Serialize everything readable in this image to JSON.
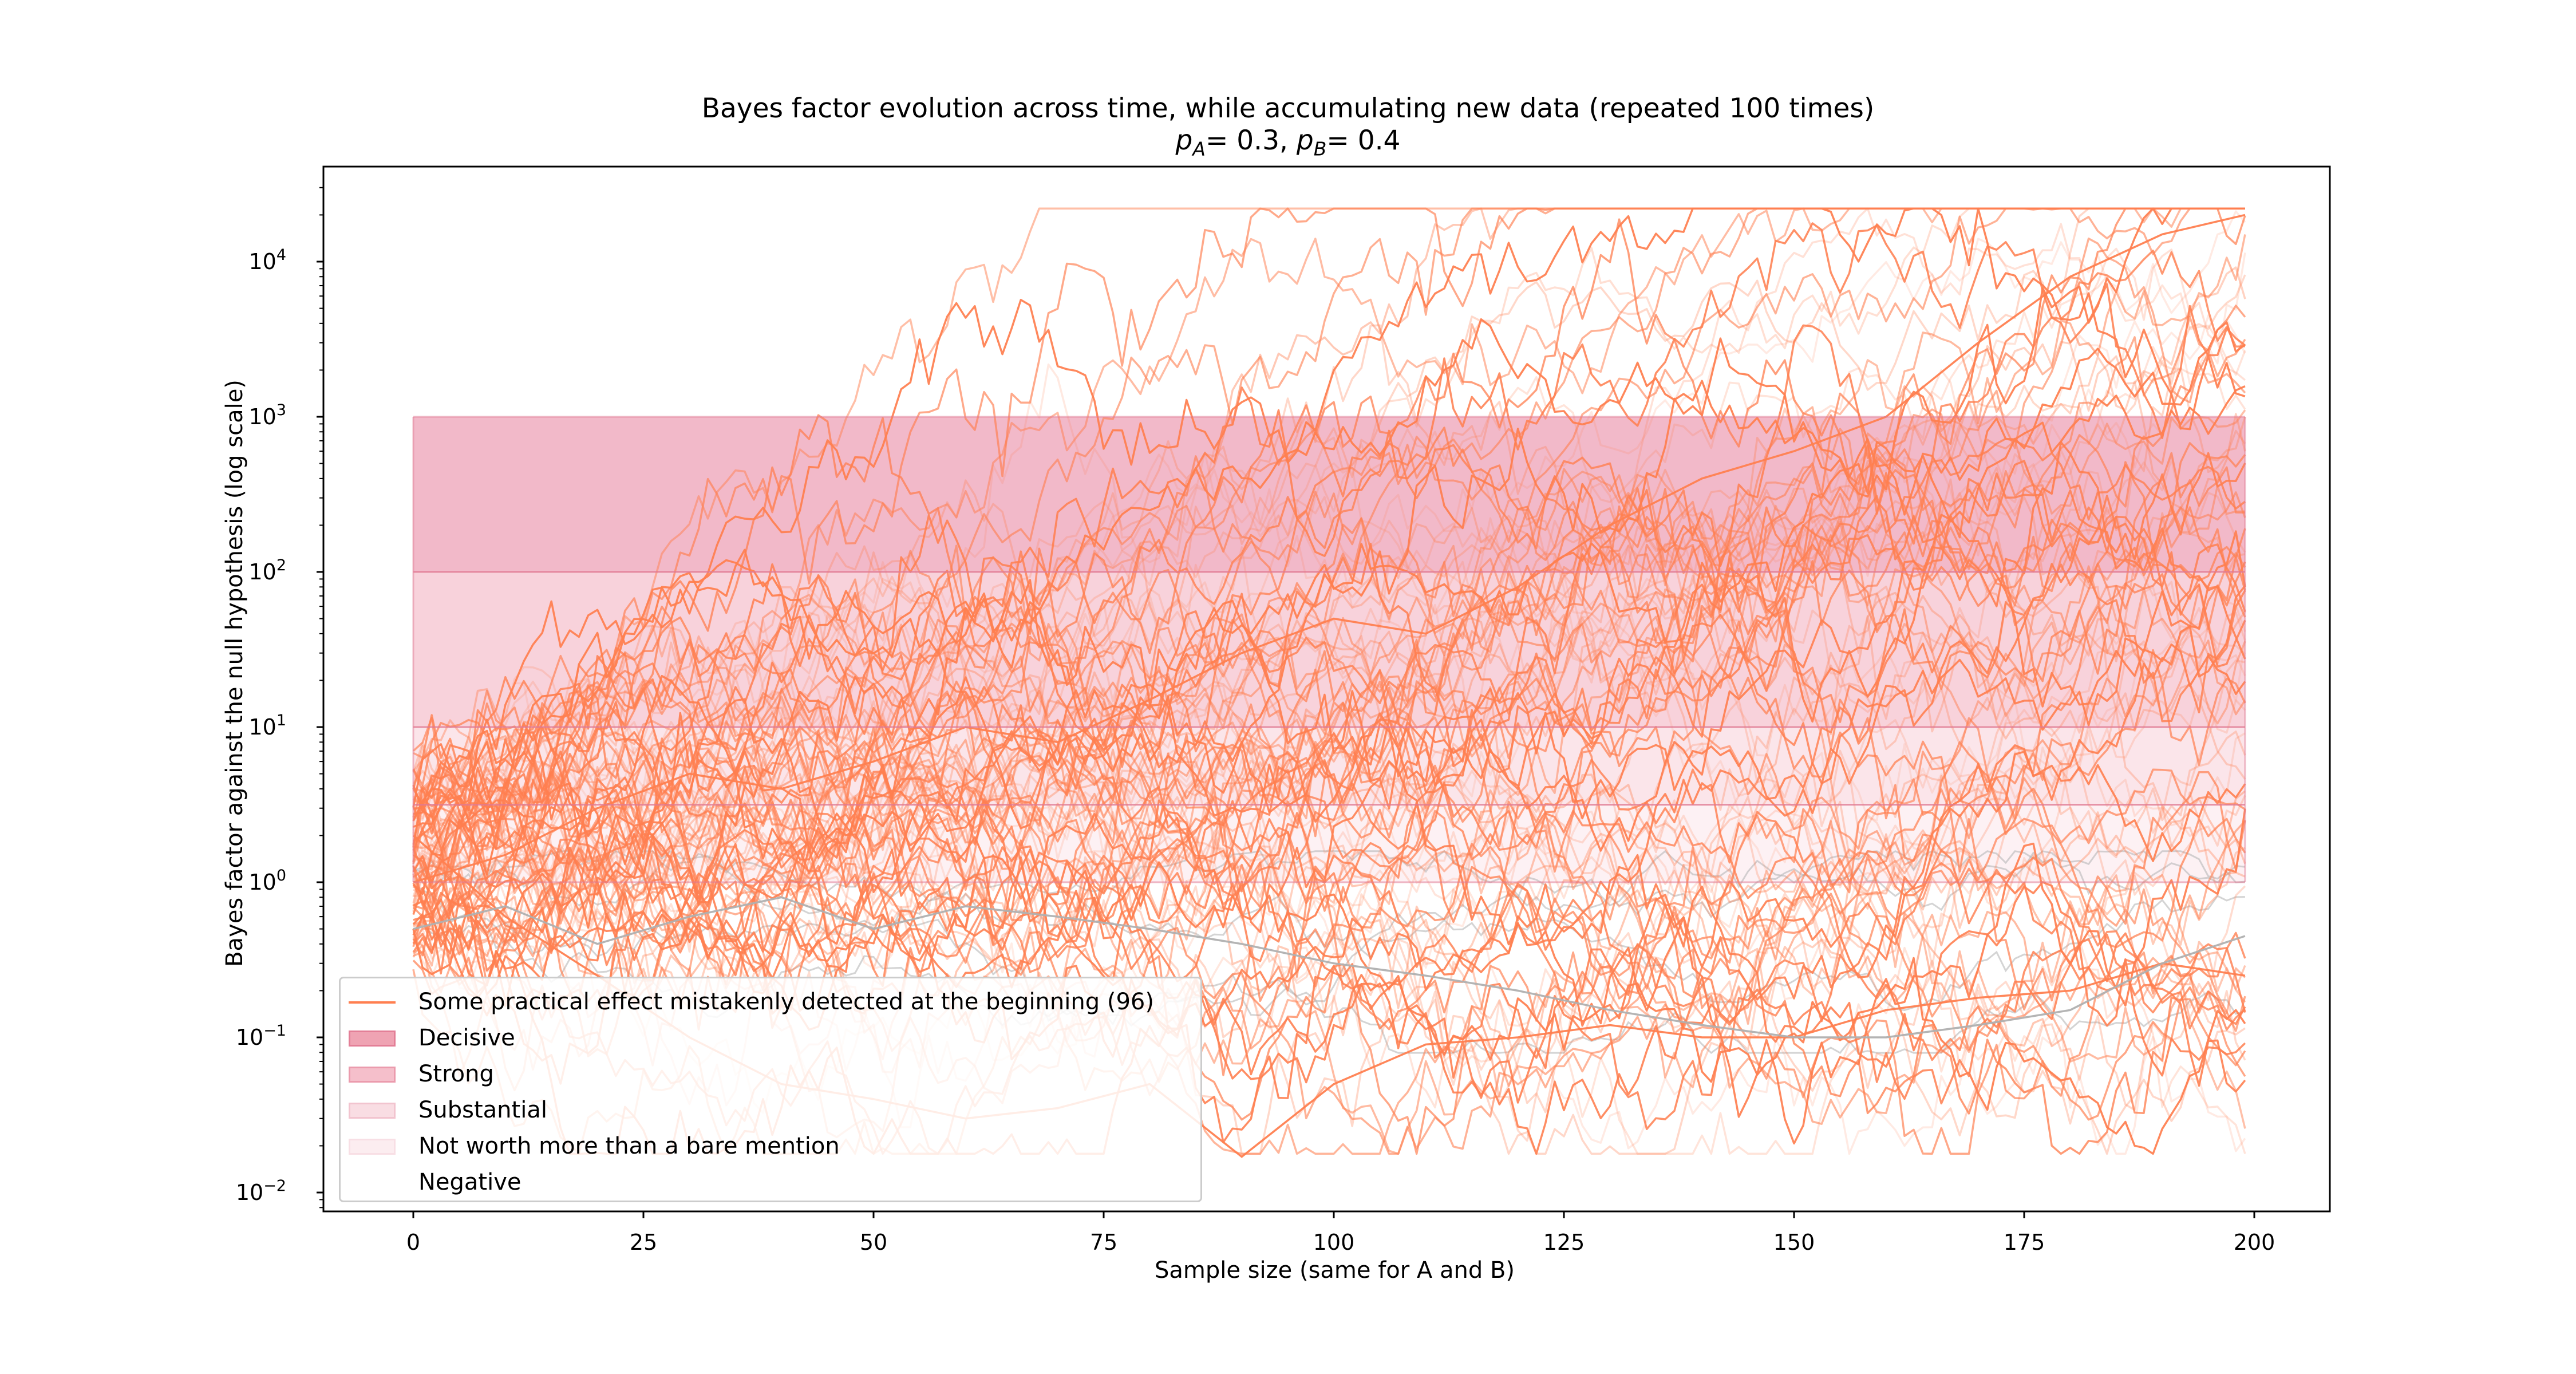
{
  "chart_data": {
    "type": "line",
    "title": "Bayes factor evolution across time, while accumulating new data (repeated 100 times)",
    "subtitle": {
      "pA_label": "p",
      "pA_sub": "A",
      "pA_value": "= 0.3, ",
      "pB_label": "p",
      "pB_sub": "B",
      "pB_value": "= 0.4"
    },
    "xlabel": "Sample size (same for A and B)",
    "ylabel": "Bayes factor against the null hypothesis (log scale)",
    "xlim": [
      -10,
      208
    ],
    "ylim": [
      0.008,
      32000
    ],
    "yscale": "log",
    "x_ticks": [
      "0",
      "25",
      "50",
      "75",
      "100",
      "125",
      "150",
      "175",
      "200"
    ],
    "y_ticks": [
      {
        "base": "10",
        "exp": "−2",
        "value": 0.01
      },
      {
        "base": "10",
        "exp": "−1",
        "value": 0.1
      },
      {
        "base": "10",
        "exp": "0",
        "value": 1
      },
      {
        "base": "10",
        "exp": "1",
        "value": 10
      },
      {
        "base": "10",
        "exp": "2",
        "value": 100
      },
      {
        "base": "10",
        "exp": "3",
        "value": 1000
      },
      {
        "base": "10",
        "exp": "4",
        "value": 10000
      }
    ],
    "bands": [
      {
        "name": "Decisive",
        "from": 100,
        "to": 1000,
        "color": "#e8809c",
        "opacity": 0.55
      },
      {
        "name": "Strong",
        "from": 10,
        "to": 100,
        "color": "#f1a6b8",
        "opacity": 0.5
      },
      {
        "name": "Substantial",
        "from": 3.16,
        "to": 10,
        "color": "#f6c6d1",
        "opacity": 0.45
      },
      {
        "name": "Not worth more than a bare mention",
        "from": 1,
        "to": 3.16,
        "color": "#fbdde4",
        "opacity": 0.4
      },
      {
        "name": "Negative",
        "from": 0.01,
        "to": 1,
        "color": "#ffffff",
        "opacity": 0.0
      }
    ],
    "band_x_range": [
      0,
      199
    ],
    "cap_value": 22000,
    "series_summary": {
      "name": "Some practical effect mistakenly detected at the beginning (96)",
      "color": "#ff7f50",
      "n_highlight": 96,
      "n_gray": 4,
      "n_steps": 200
    },
    "representative_paths": [
      {
        "x": [
          0,
          10,
          20,
          30,
          40,
          50,
          60,
          70,
          80,
          90,
          100,
          110,
          120,
          130,
          140,
          150,
          160,
          170,
          180,
          190,
          199
        ],
        "y": [
          2.0,
          0.6,
          0.25,
          0.1,
          0.05,
          0.04,
          0.03,
          0.035,
          0.05,
          0.017,
          0.05,
          0.09,
          0.1,
          0.12,
          0.1,
          0.1,
          0.15,
          0.18,
          0.2,
          0.3,
          0.25
        ]
      },
      {
        "x": [
          0,
          10,
          20,
          30,
          40,
          50,
          60,
          70,
          80,
          90,
          100,
          110,
          120,
          130,
          140,
          150,
          160,
          170,
          180,
          190,
          199
        ],
        "y": [
          1.0,
          1.5,
          3,
          5,
          4,
          6,
          10,
          8,
          15,
          30,
          50,
          40,
          80,
          200,
          400,
          600,
          1000,
          3000,
          8000,
          15000,
          20000
        ]
      },
      {
        "x": [
          0,
          10,
          20,
          30,
          40,
          50,
          60,
          70,
          80,
          90,
          100,
          110,
          120,
          130,
          140,
          150,
          160,
          170,
          180,
          190,
          199
        ],
        "y": [
          0.5,
          0.7,
          0.4,
          0.6,
          0.8,
          0.5,
          0.7,
          0.6,
          0.5,
          0.4,
          0.3,
          0.25,
          0.2,
          0.15,
          0.12,
          0.1,
          0.1,
          0.12,
          0.15,
          0.3,
          0.45
        ]
      }
    ]
  },
  "legend": {
    "entries": [
      {
        "label": "Some practical effect mistakenly detected at the beginning (96)",
        "kind": "line",
        "color": "#ff7f50"
      },
      {
        "label": "Decisive",
        "kind": "patch",
        "color": "#efa3b3",
        "edge": "#e37f97"
      },
      {
        "label": "Strong",
        "kind": "patch",
        "color": "#f5bfcb",
        "edge": "#eb9bad"
      },
      {
        "label": "Substantial",
        "kind": "patch",
        "color": "#f9dde3",
        "edge": "#f2c4cf"
      },
      {
        "label": "Not worth more than a bare mention",
        "kind": "patch",
        "color": "#fcedf0",
        "edge": "#f8dfe5"
      },
      {
        "label": "Negative",
        "kind": "patch",
        "color": "#ffffff",
        "edge": "#ffffff"
      }
    ]
  }
}
